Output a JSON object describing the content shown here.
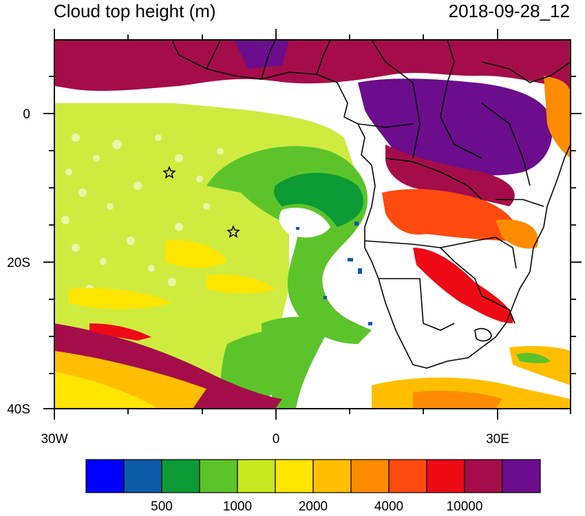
{
  "title": "Cloud top height (m)",
  "datetime": "2018-09-28_12",
  "axes": {
    "y_ticks": [
      "0",
      "20S",
      "40S"
    ],
    "x_ticks": [
      "30W",
      "0",
      "30E"
    ]
  },
  "markers": {
    "count": 2,
    "symbol": "star"
  },
  "colorbar": {
    "colors": [
      "#0000ff",
      "#0d5aa8",
      "#0c9a35",
      "#5cc42a",
      "#c7e81f",
      "#ffe600",
      "#ffbf00",
      "#ff8c00",
      "#ff4a10",
      "#ee0a14",
      "#a50d4a",
      "#6b0d8c"
    ],
    "labels": [
      "500",
      "1000",
      "2000",
      "4000",
      "10000"
    ]
  }
}
